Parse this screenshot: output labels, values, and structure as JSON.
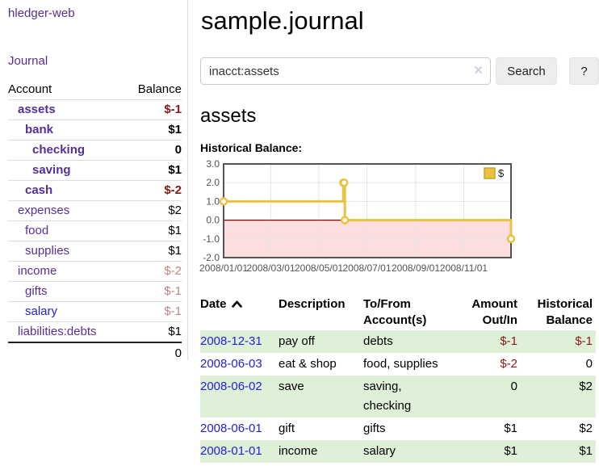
{
  "colors": {
    "link_purple": "#552e99",
    "link_blue": "#2222dd",
    "negative_strong": "#8b1717",
    "negative_soft": "#c08585",
    "row_green": "#dff0d8",
    "series_gold": "#e8c240",
    "chart_border": "#545454",
    "negative_region_pink": "#fcdede",
    "zero_line_red": "#8b0000"
  },
  "sidebar": {
    "brand": "hledger-web",
    "nav_journal": "Journal",
    "accounts": {
      "header_account": "Account",
      "header_balance": "Balance",
      "rows": [
        {
          "name": "assets",
          "balance": "$-1",
          "classes": {
            "name": "d1 bold",
            "balance": "bold neg-strong"
          }
        },
        {
          "name": "bank",
          "balance": "$1",
          "classes": {
            "name": "d2 bold",
            "balance": "bold"
          }
        },
        {
          "name": "checking",
          "balance": "0",
          "classes": {
            "name": "d3 bold",
            "balance": "bold"
          }
        },
        {
          "name": "saving",
          "balance": "$1",
          "classes": {
            "name": "d3 bold",
            "balance": "bold"
          }
        },
        {
          "name": "cash",
          "balance": "$-2",
          "classes": {
            "name": "d2 bold",
            "balance": "bold neg-strong"
          }
        },
        {
          "name": "expenses",
          "balance": "$2",
          "classes": {
            "name": "d1",
            "balance": ""
          }
        },
        {
          "name": "food",
          "balance": "$1",
          "classes": {
            "name": "d2",
            "balance": ""
          }
        },
        {
          "name": "supplies",
          "balance": "$1",
          "classes": {
            "name": "d2",
            "balance": ""
          }
        },
        {
          "name": "income",
          "balance": "$-2",
          "classes": {
            "name": "d1",
            "balance": "neg-soft"
          }
        },
        {
          "name": "gifts",
          "balance": "$-1",
          "classes": {
            "name": "d2",
            "balance": "neg-soft"
          }
        },
        {
          "name": "salary",
          "balance": "$-1",
          "classes": {
            "name": "d2 link-blue",
            "balance": "neg-soft"
          }
        },
        {
          "name": "liabilities:debts",
          "balance": "$1",
          "classes": {
            "name": "d1",
            "balance": ""
          }
        }
      ],
      "total": "0"
    }
  },
  "main": {
    "title": "sample.journal",
    "search": {
      "value": "inacct:assets",
      "clear_icon": "✕",
      "button_label": "Search",
      "help_label": "?"
    },
    "account_heading": "assets",
    "chart_title": "Historical Balance:",
    "register": {
      "headers": {
        "date": "Date",
        "description": "Description",
        "accounts": "To/From Account(s)",
        "amount": "Amount Out/In",
        "balance": "Historical Balance"
      },
      "rows": [
        {
          "date": "2008-12-31",
          "description": "pay off",
          "accounts": "debts",
          "amount": "$-1",
          "balance": "$-1",
          "classes": {
            "amount": "neg-strong",
            "balance": "neg-strong"
          }
        },
        {
          "date": "2008-06-03",
          "description": "eat & shop",
          "accounts": "food, supplies",
          "amount": "$-2",
          "balance": "0",
          "classes": {
            "amount": "neg-strong",
            "balance": ""
          }
        },
        {
          "date": "2008-06-02",
          "description": "save",
          "accounts": "saving, checking",
          "amount": "0",
          "balance": "$2",
          "classes": {
            "amount": "",
            "balance": ""
          }
        },
        {
          "date": "2008-06-01",
          "description": "gift",
          "accounts": "gifts",
          "amount": "$1",
          "balance": "$2",
          "classes": {
            "amount": "",
            "balance": ""
          }
        },
        {
          "date": "2008-01-01",
          "description": "income",
          "accounts": "salary",
          "amount": "$1",
          "balance": "$1",
          "classes": {
            "amount": "",
            "balance": ""
          }
        }
      ]
    }
  },
  "chart_data": {
    "type": "line",
    "title": "Historical Balance",
    "step": true,
    "legend_position": "top-right",
    "grid": true,
    "x_range": [
      "2008-01-01",
      "2008-12-31"
    ],
    "ylim": [
      -2,
      3
    ],
    "y_ticks": [
      3.0,
      2.0,
      1.0,
      0.0,
      -1.0,
      -2.0
    ],
    "x_ticks": [
      "2008/01/01",
      "2008/03/01",
      "2008/05/01",
      "2008/07/01",
      "2008/09/01",
      "2008/11/01"
    ],
    "series": [
      {
        "name": "$",
        "color": "#e8c240",
        "points": [
          {
            "x": "2008-01-01",
            "y": 1
          },
          {
            "x": "2008-06-01",
            "y": 2
          },
          {
            "x": "2008-06-02",
            "y": 2
          },
          {
            "x": "2008-06-03",
            "y": 0
          },
          {
            "x": "2008-12-31",
            "y": -1
          }
        ]
      }
    ],
    "negative_region_color": "#fcdede",
    "zero_line_color": "#8b0000",
    "border_color": "#545454",
    "gridline_color": "#e5e5e5",
    "tick_label_color": "#545454"
  }
}
